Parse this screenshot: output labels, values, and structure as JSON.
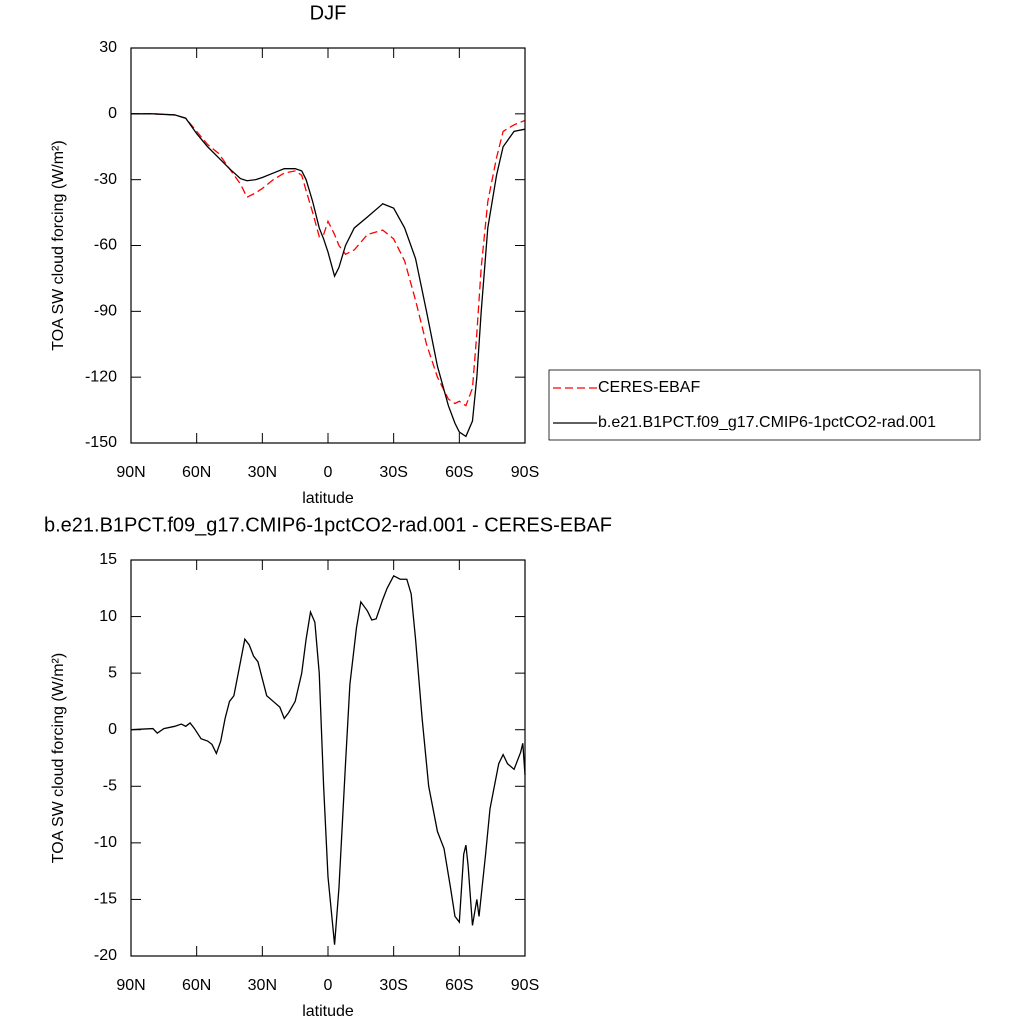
{
  "chart_data": [
    {
      "type": "line",
      "title": "DJF",
      "xlabel": "latitude",
      "ylabel": "TOA SW cloud forcing (W/m²)",
      "x": [
        90,
        80,
        70,
        65,
        60,
        55,
        50,
        45,
        40,
        37,
        33,
        30,
        25,
        20,
        15,
        12,
        10,
        7,
        4,
        2,
        0,
        -3,
        -5,
        -8,
        -12,
        -18,
        -25,
        -30,
        -35,
        -40,
        -45,
        -50,
        -55,
        -58,
        -60,
        -63,
        -66,
        -68,
        -70,
        -73,
        -77,
        -80,
        -85,
        -90
      ],
      "series": [
        {
          "name": "CERES-EBAF",
          "color": "#ff0000",
          "dash": true,
          "values": [
            0,
            0,
            -0.5,
            -2,
            -8,
            -14,
            -18,
            -25,
            -32,
            -38,
            -36,
            -34,
            -30,
            -27,
            -26,
            -28,
            -35,
            -45,
            -56,
            -55,
            -49,
            -55,
            -60,
            -64,
            -62,
            -55,
            -53,
            -57,
            -67,
            -85,
            -105,
            -120,
            -130,
            -132,
            -131,
            -133,
            -125,
            -100,
            -70,
            -40,
            -20,
            -8,
            -5,
            -3
          ]
        },
        {
          "name": "b.e21.B1PCT.f09_g17.CMIP6-1pctCO2-rad.001",
          "color": "#000000",
          "dash": false,
          "values": [
            0,
            0,
            -0.5,
            -2,
            -9,
            -15,
            -20,
            -25,
            -29.5,
            -30.5,
            -30,
            -29,
            -27,
            -25,
            -25,
            -26,
            -30,
            -40,
            -52,
            -57,
            -63,
            -74,
            -70,
            -60,
            -52,
            -47,
            -41,
            -43,
            -52,
            -66,
            -90,
            -115,
            -133,
            -141,
            -145,
            -147,
            -140,
            -120,
            -90,
            -52,
            -28,
            -15,
            -8,
            -7
          ]
        }
      ],
      "xlim": [
        90,
        -90
      ],
      "xticks": [
        {
          "value": 90,
          "label": "90N"
        },
        {
          "value": 60,
          "label": "60N"
        },
        {
          "value": 30,
          "label": "30N"
        },
        0,
        {
          "value": -30,
          "label": "30S"
        },
        {
          "value": -60,
          "label": "60S"
        },
        {
          "value": -90,
          "label": "90S"
        }
      ],
      "ylim": [
        -150,
        30
      ],
      "yticks": [
        30,
        0,
        -30,
        -60,
        -90,
        -120,
        -150
      ],
      "legend": "outside right"
    },
    {
      "type": "line",
      "title": "b.e21.B1PCT.f09_g17.CMIP6-1pctCO2-rad.001 - CERES-EBAF",
      "xlabel": "latitude",
      "ylabel": "TOA SW cloud forcing (W/m²)",
      "x": [
        90,
        80,
        78,
        75,
        70,
        67,
        65,
        63,
        61,
        58,
        55,
        53,
        51,
        49,
        47,
        45,
        43,
        40,
        38,
        36,
        34,
        32,
        30,
        28,
        25,
        22,
        20,
        18,
        15,
        12,
        10,
        8,
        6,
        4,
        2,
        0,
        -2,
        -3,
        -5,
        -8,
        -10,
        -13,
        -15,
        -18,
        -20,
        -22,
        -25,
        -27,
        -30,
        -33,
        -36,
        -38,
        -40,
        -43,
        -46,
        -50,
        -53,
        -56,
        -58,
        -60,
        -62,
        -63,
        -64,
        -66,
        -68,
        -69,
        -72,
        -74,
        -76,
        -78,
        -80,
        -82,
        -85,
        -88,
        -89,
        -90
      ],
      "series": [
        {
          "color": "#000000",
          "dash": false,
          "values": [
            0,
            0.1,
            -0.3,
            0.1,
            0.3,
            0.5,
            0.3,
            0.6,
            0.1,
            -0.8,
            -1,
            -1.3,
            -2.1,
            -1,
            1,
            2.5,
            3,
            6,
            8,
            7.5,
            6.5,
            6,
            4.5,
            3,
            2.5,
            2,
            1,
            1.5,
            2.5,
            5,
            8,
            10.4,
            9.5,
            5,
            -5,
            -13,
            -17,
            -19,
            -14,
            -3,
            4,
            9,
            11.3,
            10.5,
            9.7,
            9.8,
            11.5,
            12.5,
            13.6,
            13.3,
            13.3,
            12,
            8,
            1,
            -5,
            -9,
            -10.5,
            -14,
            -16.5,
            -17,
            -11,
            -10.2,
            -12,
            -17.3,
            -15,
            -16.5,
            -11,
            -7,
            -5,
            -3,
            -2.2,
            -3,
            -3.5,
            -2,
            -1.2,
            -4
          ]
        }
      ],
      "xlim": [
        90,
        -90
      ],
      "xticks": [
        {
          "value": 90,
          "label": "90N"
        },
        {
          "value": 60,
          "label": "60N"
        },
        {
          "value": 30,
          "label": "30N"
        },
        0,
        {
          "value": -30,
          "label": "30S"
        },
        {
          "value": -60,
          "label": "60S"
        },
        {
          "value": -90,
          "label": "90S"
        }
      ],
      "ylim": [
        -20,
        15
      ],
      "yticks": [
        15,
        10,
        5,
        0,
        -5,
        -10,
        -15,
        -20
      ]
    }
  ]
}
